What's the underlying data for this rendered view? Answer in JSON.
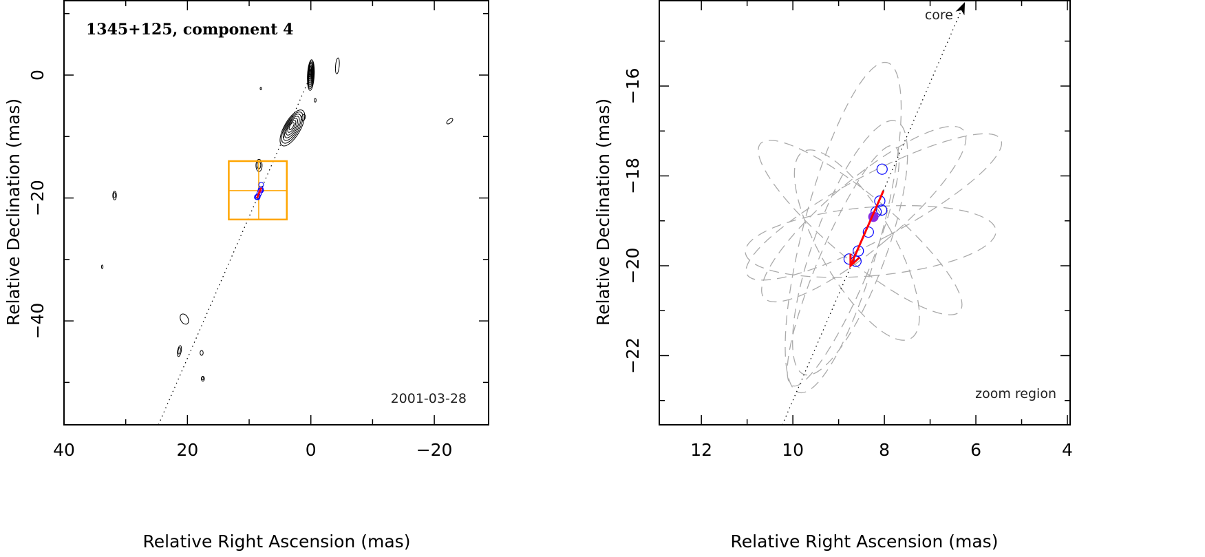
{
  "chart_data": [
    {
      "type": "scatter",
      "title": "1345+125, component 4",
      "annotation": "2001-03-28",
      "xlabel": "Relative Right Ascension (mas)",
      "ylabel": "Relative Declination (mas)",
      "xlim": [
        40,
        -28.8
      ],
      "ylim": [
        -56.9,
        12.1
      ],
      "xticks": [
        40,
        20,
        0,
        -20
      ],
      "yticks": [
        0,
        -20,
        -40
      ],
      "xtick_labels": [
        "40",
        "20",
        "0",
        "−20"
      ],
      "ytick_labels": [
        "0",
        "−20",
        "−40"
      ],
      "grid": false,
      "contours": [
        {
          "ra": 0,
          "dec": 0,
          "a": 2.5,
          "b": 0.55,
          "pa": -3,
          "levels": 9
        },
        {
          "ra": 3.0,
          "dec": -8.6,
          "a": 3.3,
          "b": 1.3,
          "pa": -30,
          "levels": 7
        },
        {
          "ra": -4.3,
          "dec": 1.5,
          "a": 1.3,
          "b": 0.3,
          "pa": -5,
          "levels": 1
        },
        {
          "ra": -22.5,
          "dec": -7.5,
          "a": 0.6,
          "b": 0.3,
          "pa": -50,
          "levels": 1
        },
        {
          "ra": 31.8,
          "dec": -19.6,
          "a": 0.7,
          "b": 0.3,
          "pa": 0,
          "levels": 2
        },
        {
          "ra": 8.4,
          "dec": -14.7,
          "a": 1.0,
          "b": 0.5,
          "pa": 0,
          "levels": 2
        },
        {
          "ra": 20.5,
          "dec": -39.7,
          "a": 0.9,
          "b": 0.6,
          "pa": 30,
          "levels": 1
        },
        {
          "ra": 21.3,
          "dec": -44.9,
          "a": 0.9,
          "b": 0.3,
          "pa": -10,
          "levels": 2
        },
        {
          "ra": 17.7,
          "dec": -45.2,
          "a": 0.4,
          "b": 0.25,
          "pa": 0,
          "levels": 1
        },
        {
          "ra": 17.5,
          "dec": -49.4,
          "a": 0.4,
          "b": 0.25,
          "pa": 0,
          "levels": 2
        },
        {
          "ra": 1.2,
          "dec": -6.9,
          "a": 0.5,
          "b": 0.3,
          "pa": -20,
          "levels": 1
        },
        {
          "ra": -0.7,
          "dec": -4.1,
          "a": 0.3,
          "b": 0.15,
          "pa": 0,
          "levels": 1
        },
        {
          "ra": 33.8,
          "dec": -31.2,
          "a": 0.3,
          "b": 0.12,
          "pa": 0,
          "levels": 1
        },
        {
          "ra": 8.1,
          "dec": -2.2,
          "a": 0.2,
          "b": 0.12,
          "pa": 0,
          "levels": 1
        }
      ],
      "jet_line": {
        "from": [
          0,
          0
        ],
        "to": [
          24.7,
          -56.9
        ]
      },
      "zoom_box": {
        "ra": [
          13.3,
          3.9
        ],
        "dec": [
          -14.0,
          -23.5
        ],
        "cross": [
          8.45,
          -18.8
        ],
        "color": "#ffa500"
      },
      "points_color": "#0000ff",
      "arrow_color": "#ff0000"
    },
    {
      "type": "scatter",
      "annotation": "zoom region",
      "core_label": "core",
      "xlabel": "Relative Right Ascension (mas)",
      "ylabel": "Relative Declination (mas)",
      "xlim": [
        12.92,
        3.94
      ],
      "ylim": [
        -23.54,
        -14.1
      ],
      "xticks": [
        12,
        10,
        8,
        6,
        4
      ],
      "yticks": [
        -16,
        -18,
        -20,
        -22
      ],
      "xtick_labels": [
        "12",
        "10",
        "8",
        "6",
        "4"
      ],
      "ytick_labels": [
        "−16",
        "−18",
        "−20",
        "−22"
      ],
      "grid": false,
      "points": [
        {
          "ra": 8.05,
          "dec": -17.85
        },
        {
          "ra": 8.1,
          "dec": -18.56
        },
        {
          "ra": 8.06,
          "dec": -18.76
        },
        {
          "ra": 8.18,
          "dec": -18.8
        },
        {
          "ra": 8.35,
          "dec": -19.25
        },
        {
          "ra": 8.57,
          "dec": -19.67
        },
        {
          "ra": 8.77,
          "dec": -19.85
        },
        {
          "ra": 8.62,
          "dec": -19.9
        }
      ],
      "mean_point": {
        "ra": 8.24,
        "dec": -18.91,
        "color": "#8a2be2"
      },
      "motion_arrow": {
        "from": [
          8.02,
          -18.33
        ],
        "to": [
          8.74,
          -20.0
        ],
        "color": "#ff0000"
      },
      "core_line": {
        "from": [
          10.23,
          -23.54
        ],
        "to": [
          6.24,
          -14.13
        ]
      },
      "ellipses": [
        {
          "ra": 8.9,
          "dec": -19.15,
          "a": 3.8,
          "b": 0.85,
          "pa": -15
        },
        {
          "ra": 8.45,
          "dec": -18.85,
          "a": 2.9,
          "b": 0.75,
          "pa": -50
        },
        {
          "ra": 8.23,
          "dec": -18.69,
          "a": 3.2,
          "b": 0.7,
          "pa": -62
        },
        {
          "ra": 8.3,
          "dec": -19.46,
          "a": 2.8,
          "b": 0.75,
          "pa": -85
        },
        {
          "ra": 8.53,
          "dec": -19.15,
          "a": 2.9,
          "b": 0.7,
          "pa": 50
        },
        {
          "ra": 8.75,
          "dec": -19.6,
          "a": 3.0,
          "b": 0.8,
          "pa": -20
        },
        {
          "ra": 8.9,
          "dec": -20.0,
          "a": 2.9,
          "b": 0.55,
          "pa": -23
        },
        {
          "ra": 8.6,
          "dec": -19.54,
          "a": 2.4,
          "b": 0.8,
          "pa": 30
        }
      ],
      "ellipse_color": "#aaaaaa",
      "points_color": "#0000ff"
    }
  ]
}
